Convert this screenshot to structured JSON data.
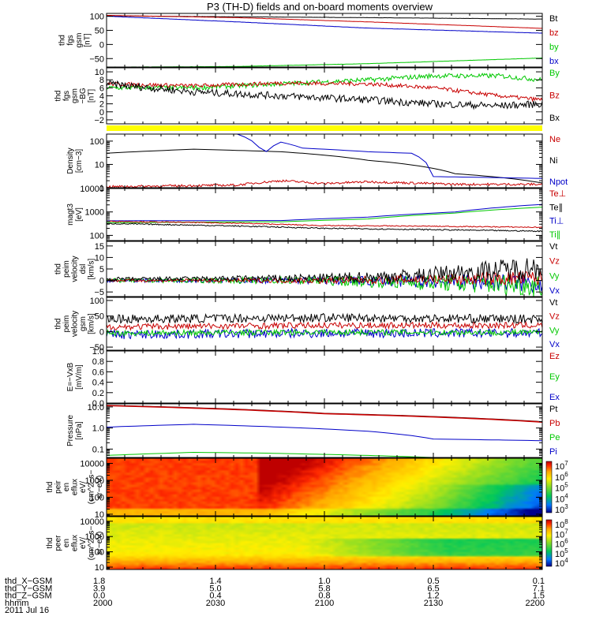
{
  "title": "P3 (TH-D) fields and on-board moments overview",
  "colors": {
    "black": "#000000",
    "red": "#c80000",
    "green": "#00c800",
    "blue": "#0000c8",
    "yellow": "#ffff00"
  },
  "chart_data": [
    {
      "id": "fgs",
      "type": "line",
      "ylabel": [
        "thd",
        "fgs",
        "gsm",
        "[nT]"
      ],
      "ylim": [
        -80,
        110
      ],
      "yticks": [
        {
          "v": 100,
          "t": "100"
        },
        {
          "v": 50,
          "t": "50"
        },
        {
          "v": 0,
          "t": "0"
        },
        {
          "v": -50,
          "t": "−50"
        }
      ],
      "legend": [
        {
          "t": "Bt",
          "c": "black"
        },
        {
          "t": "bz",
          "c": "red"
        },
        {
          "t": "by",
          "c": "green"
        },
        {
          "t": "bx",
          "c": "blue"
        }
      ],
      "series": [
        {
          "name": "Bt",
          "color": "black",
          "noise": 0.3,
          "lw": 1,
          "x": [
            0,
            0.3,
            0.6,
            1
          ],
          "y": [
            101,
            98,
            95,
            90
          ]
        },
        {
          "name": "bz",
          "color": "red",
          "noise": 0.3,
          "lw": 1,
          "x": [
            0,
            0.3,
            0.6,
            1
          ],
          "y": [
            103,
            95,
            80,
            57
          ]
        },
        {
          "name": "by",
          "color": "green",
          "noise": 0.3,
          "lw": 1,
          "x": [
            0,
            0.05,
            0.3,
            0.6,
            1
          ],
          "y": [
            -80,
            -80,
            -78,
            -68,
            -48
          ]
        },
        {
          "name": "bx",
          "color": "blue",
          "noise": 0.3,
          "lw": 1,
          "x": [
            0,
            0.3,
            0.6,
            1
          ],
          "y": [
            100,
            80,
            58,
            40
          ]
        }
      ]
    },
    {
      "id": "fgs_low",
      "type": "line",
      "ylabel": [
        "thd",
        "fgs",
        "gsm",
        "−BG",
        "[nT]"
      ],
      "ylim": [
        -3,
        11
      ],
      "yticks": [
        {
          "v": 10,
          "t": "10"
        },
        {
          "v": 8,
          "t": "8"
        },
        {
          "v": 6,
          "t": "6"
        },
        {
          "v": 4,
          "t": "4"
        },
        {
          "v": 2,
          "t": "2"
        },
        {
          "v": 0,
          "t": "0"
        },
        {
          "v": -2,
          "t": "−2"
        }
      ],
      "legend": [
        {
          "t": "By",
          "c": "green"
        },
        {
          "t": "Bz",
          "c": "red"
        },
        {
          "t": "Bx",
          "c": "black"
        }
      ],
      "series": [
        {
          "name": "By",
          "color": "green",
          "noise": 0.6,
          "lw": 1,
          "x": [
            0,
            0.2,
            0.4,
            0.6,
            0.75,
            0.9,
            1
          ],
          "y": [
            6,
            6,
            7,
            8,
            9,
            9,
            8
          ]
        },
        {
          "name": "Bz",
          "color": "red",
          "noise": 0.5,
          "lw": 1,
          "x": [
            0,
            0.2,
            0.4,
            0.6,
            0.75,
            0.9,
            1
          ],
          "y": [
            7,
            6.5,
            7.2,
            7,
            6,
            4,
            3
          ]
        },
        {
          "name": "Bx",
          "color": "black",
          "noise": 0.9,
          "lw": 1,
          "x": [
            0,
            0.2,
            0.4,
            0.6,
            0.75,
            0.9,
            1
          ],
          "y": [
            7,
            5,
            4,
            3,
            2,
            1.5,
            2
          ]
        }
      ]
    },
    {
      "id": "density",
      "type": "line",
      "scale": "log",
      "ylabel": [
        "Density",
        "[cm−3]"
      ],
      "ylim": [
        1,
        200
      ],
      "yticks": [
        {
          "v": 100,
          "t": "100"
        },
        {
          "v": 10,
          "t": "10"
        },
        {
          "v": 1,
          "t": "1"
        }
      ],
      "legend": [
        {
          "t": "Ne",
          "c": "red"
        },
        {
          "t": "Ni",
          "c": "black"
        },
        {
          "t": "Npot",
          "c": "blue"
        }
      ],
      "series": [
        {
          "name": "Ni",
          "color": "black",
          "noise": 0,
          "lw": 1,
          "x": [
            0,
            0.2,
            0.4,
            0.6,
            0.8,
            1
          ],
          "y": [
            30,
            45,
            35,
            15,
            4,
            1.6
          ]
        },
        {
          "name": "Npot",
          "color": "blue",
          "noise": 0,
          "lw": 1,
          "x": [
            0.3,
            0.36,
            0.4,
            0.45,
            0.6,
            0.7,
            0.75,
            1
          ],
          "y": [
            200,
            25,
            90,
            50,
            35,
            30,
            3,
            2.5
          ]
        },
        {
          "name": "Ne",
          "color": "red",
          "noise": 0.1,
          "lw": 1,
          "x": [
            0,
            0.3,
            0.4,
            0.5,
            0.6,
            0.8,
            1
          ],
          "y": [
            1.1,
            1.3,
            2,
            1.5,
            1.8,
            1.4,
            1.4
          ]
        }
      ]
    },
    {
      "id": "temp",
      "type": "line",
      "scale": "log",
      "ylabel": [
        "magt3",
        "[eV]"
      ],
      "ylim": [
        60,
        10000
      ],
      "yticks": [
        {
          "v": 10000,
          "t": "10000"
        },
        {
          "v": 1000,
          "t": "1000"
        },
        {
          "v": 100,
          "t": "100"
        }
      ],
      "legend": [
        {
          "t": "Te⊥",
          "c": "red"
        },
        {
          "t": "Te∥",
          "c": "black"
        },
        {
          "t": "Ti⊥",
          "c": "blue"
        },
        {
          "t": "Ti∥",
          "c": "green"
        }
      ],
      "series": [
        {
          "name": "Ti⊥",
          "color": "blue",
          "noise": 0,
          "lw": 1,
          "x": [
            0,
            0.4,
            0.6,
            0.8,
            1
          ],
          "y": [
            420,
            430,
            600,
            1000,
            2100
          ]
        },
        {
          "name": "Ti∥",
          "color": "green",
          "noise": 0,
          "lw": 1,
          "x": [
            0,
            0.4,
            0.6,
            0.8,
            1
          ],
          "y": [
            350,
            380,
            500,
            900,
            1600
          ]
        },
        {
          "name": "Te⊥",
          "color": "red",
          "noise": 0.04,
          "lw": 1,
          "x": [
            0,
            0.3,
            0.5,
            0.7,
            1
          ],
          "y": [
            400,
            330,
            260,
            250,
            220
          ]
        },
        {
          "name": "Te∥",
          "color": "black",
          "noise": 0.05,
          "lw": 1,
          "x": [
            0,
            0.3,
            0.5,
            0.7,
            1
          ],
          "y": [
            320,
            250,
            200,
            180,
            150
          ]
        }
      ]
    },
    {
      "id": "velocity_e",
      "type": "line",
      "ylabel": [
        "thd",
        "peim",
        "velocity",
        "dsl",
        "[km/s]"
      ],
      "ylim": [
        -7,
        17
      ],
      "yticks": [
        {
          "v": 15,
          "t": "15"
        },
        {
          "v": 10,
          "t": "10"
        },
        {
          "v": 5,
          "t": "5"
        },
        {
          "v": 0,
          "t": "0"
        },
        {
          "v": -5,
          "t": "−5"
        }
      ],
      "legend": [
        {
          "t": "Vt",
          "c": "black"
        },
        {
          "t": "Vz",
          "c": "red"
        },
        {
          "t": "Vy",
          "c": "green"
        },
        {
          "t": "Vx",
          "c": "blue"
        }
      ],
      "series": [
        {
          "name": "Vx",
          "color": "blue",
          "noise": 1.5,
          "lw": 1,
          "x": [
            0,
            0.5,
            1
          ],
          "y": [
            0,
            0,
            -1
          ]
        },
        {
          "name": "Vy",
          "color": "green",
          "noise": 1.8,
          "lw": 1,
          "x": [
            0,
            0.5,
            1
          ],
          "y": [
            0,
            0,
            -2
          ]
        },
        {
          "name": "Vz",
          "color": "red",
          "noise": 1.2,
          "lw": 1,
          "x": [
            0,
            0.5,
            1
          ],
          "y": [
            0,
            0,
            1
          ]
        },
        {
          "name": "Vt",
          "color": "black",
          "noise": 1.8,
          "lw": 1,
          "x": [
            0,
            0.5,
            0.7,
            1
          ],
          "y": [
            0.5,
            1,
            2,
            6
          ]
        }
      ]
    },
    {
      "id": "velocity_gsm",
      "type": "line",
      "ylabel": [
        "thd",
        "peim",
        "velocity",
        "gsm",
        "[km/s]"
      ],
      "ylim": [
        -60,
        110
      ],
      "yticks": [
        {
          "v": 100,
          "t": "100"
        },
        {
          "v": 50,
          "t": "50"
        },
        {
          "v": 0,
          "t": "0"
        },
        {
          "v": -50,
          "t": "−50"
        }
      ],
      "legend": [
        {
          "t": "Vt",
          "c": "black"
        },
        {
          "t": "Vz",
          "c": "red"
        },
        {
          "t": "Vy",
          "c": "green"
        },
        {
          "t": "Vx",
          "c": "blue"
        }
      ],
      "series": [
        {
          "name": "Vx",
          "color": "blue",
          "noise": 15,
          "lw": 1,
          "x": [
            0,
            0.5,
            1
          ],
          "y": [
            -10,
            -5,
            -5
          ]
        },
        {
          "name": "Vy",
          "color": "green",
          "noise": 9,
          "lw": 1,
          "x": [
            0,
            0.5,
            1
          ],
          "y": [
            -5,
            -2,
            -3
          ]
        },
        {
          "name": "Vz",
          "color": "red",
          "noise": 10,
          "lw": 1,
          "x": [
            0,
            0.5,
            1
          ],
          "y": [
            15,
            20,
            20
          ]
        },
        {
          "name": "Vt",
          "color": "black",
          "noise": 14,
          "lw": 1,
          "x": [
            0,
            0.5,
            1
          ],
          "y": [
            40,
            45,
            40
          ]
        }
      ]
    },
    {
      "id": "efield",
      "type": "line",
      "ylabel": [
        "E=−VxB",
        "[mV/m]"
      ],
      "ylim": [
        0,
        1
      ],
      "yticks": [
        {
          "v": 1.0,
          "t": "1.0"
        },
        {
          "v": 0.8,
          "t": "0.8"
        },
        {
          "v": 0.6,
          "t": "0.6"
        },
        {
          "v": 0.4,
          "t": "0.4"
        },
        {
          "v": 0.2,
          "t": "0.2"
        },
        {
          "v": 0.0,
          "t": "0.0"
        }
      ],
      "legend": [
        {
          "t": "Ez",
          "c": "red"
        },
        {
          "t": "Ey",
          "c": "green"
        },
        {
          "t": "Ex",
          "c": "blue"
        }
      ],
      "series": []
    },
    {
      "id": "pressure",
      "type": "line",
      "scale": "log",
      "ylabel": [
        "Pressure",
        "[nPa]"
      ],
      "ylim": [
        0.04,
        14
      ],
      "yticks": [
        {
          "v": 10,
          "t": "10.0"
        },
        {
          "v": 1,
          "t": "1.0"
        },
        {
          "v": 0.1,
          "t": "0.1"
        }
      ],
      "legend": [
        {
          "t": "Pt",
          "c": "black"
        },
        {
          "t": "Pb",
          "c": "red"
        },
        {
          "t": "Pe",
          "c": "green"
        },
        {
          "t": "Pi",
          "c": "blue"
        }
      ],
      "series": [
        {
          "name": "Pt",
          "color": "black",
          "noise": 0,
          "lw": 1,
          "x": [
            0,
            0.5,
            1
          ],
          "y": [
            12,
            5,
            2
          ]
        },
        {
          "name": "Pb",
          "color": "red",
          "noise": 0,
          "lw": 1.6,
          "x": [
            0,
            0.5,
            1
          ],
          "y": [
            11.5,
            4.8,
            1.9
          ]
        },
        {
          "name": "Pi",
          "color": "blue",
          "noise": 0,
          "lw": 1,
          "x": [
            0,
            0.2,
            0.35,
            0.6,
            0.75,
            1
          ],
          "y": [
            1.1,
            1.5,
            1.2,
            0.7,
            0.3,
            0.25
          ]
        },
        {
          "name": "Pe",
          "color": "green",
          "noise": 0,
          "lw": 1,
          "x": [
            0,
            0.2,
            0.35,
            0.6,
            0.75,
            1
          ],
          "y": [
            0.05,
            0.07,
            0.065,
            0.05,
            0.04,
            0.035
          ]
        }
      ]
    },
    {
      "id": "spec_i",
      "type": "heatmap",
      "ylabel": [
        "thd",
        "peir",
        "en",
        "eflux",
        "eV/",
        "(cm^2−s−",
        "sr−eV)"
      ],
      "ylim": [
        8,
        20000
      ],
      "yticks": [
        {
          "v": 10000,
          "t": "10000"
        },
        {
          "v": 1000,
          "t": "1000"
        },
        {
          "v": 100,
          "t": "100"
        },
        {
          "v": 10,
          "t": "10"
        }
      ],
      "colorbar": [
        {
          "exp": "7"
        },
        {
          "exp": "6"
        },
        {
          "exp": "5"
        },
        {
          "exp": "4"
        },
        {
          "exp": "3"
        }
      ],
      "cb_base": "10"
    },
    {
      "id": "spec_e",
      "type": "heatmap",
      "ylabel": [
        "thd",
        "peer",
        "en",
        "eflux",
        "eV/",
        "(cm^2−s−",
        "sr−eV)"
      ],
      "ylim": [
        7,
        20000
      ],
      "yticks": [
        {
          "v": 10000,
          "t": "10000"
        },
        {
          "v": 1000,
          "t": "1000"
        },
        {
          "v": 100,
          "t": "100"
        },
        {
          "v": 10,
          "t": "10"
        }
      ],
      "colorbar": [
        {
          "exp": "8"
        },
        {
          "exp": "7"
        },
        {
          "exp": "6"
        },
        {
          "exp": "5"
        },
        {
          "exp": "4"
        }
      ],
      "cb_base": "10"
    }
  ],
  "footer": {
    "rows": [
      {
        "label": "thd_X−GSM",
        "values": [
          "1.8",
          "1.4",
          "1.0",
          "0.5",
          "0.1"
        ]
      },
      {
        "label": "thd_Y−GSM",
        "values": [
          "3.9",
          "5.0",
          "5.8",
          "6.5",
          "7.1"
        ]
      },
      {
        "label": "thd_Z−GSM",
        "values": [
          "0.0",
          "0.4",
          "0.8",
          "1.2",
          "1.5"
        ]
      },
      {
        "label": "hhmm",
        "values": [
          "2000",
          "2030",
          "2100",
          "2130",
          "2200"
        ]
      }
    ],
    "date": "2011 Jul 16"
  }
}
